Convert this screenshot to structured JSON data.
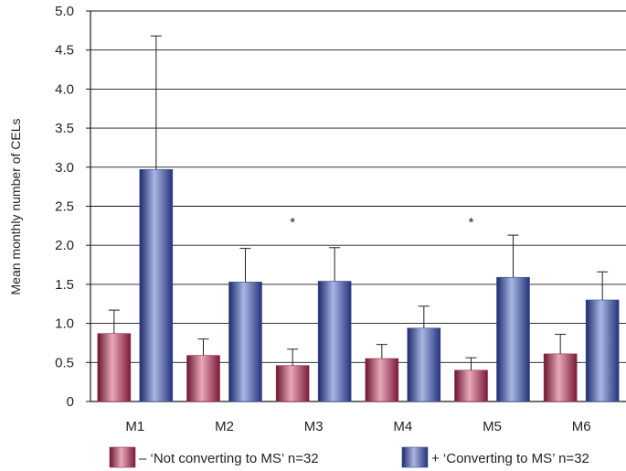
{
  "chart_data": {
    "type": "bar",
    "title": "",
    "xlabel": "",
    "ylabel": "Mean monthly number of CELs",
    "categories": [
      "M1",
      "M2",
      "M3",
      "M4",
      "M5",
      "M6"
    ],
    "ylim": [
      0,
      5.0
    ],
    "yticks": [
      "0",
      "0.5",
      "1.0",
      "1.5",
      "2.0",
      "2.5",
      "3.0",
      "3.5",
      "4.0",
      "4.5",
      "5.0"
    ],
    "grid": true,
    "legend_position": "bottom",
    "series": [
      {
        "name": "– ‘Not converting to MS’ n=32",
        "color": "#9b2a4a",
        "values": [
          0.87,
          0.59,
          0.46,
          0.55,
          0.4,
          0.61
        ],
        "error_upper": [
          1.17,
          0.8,
          0.67,
          0.73,
          0.56,
          0.86
        ]
      },
      {
        "name": "+ ‘Converting to MS’ n=32",
        "color": "#3e4f98",
        "values": [
          2.97,
          1.53,
          1.54,
          0.94,
          1.59,
          1.3
        ],
        "error_upper": [
          4.68,
          1.96,
          1.97,
          1.22,
          2.13,
          1.66
        ]
      }
    ],
    "annotations": [
      {
        "category": "M3",
        "text": "*"
      },
      {
        "category": "M5",
        "text": "*"
      }
    ]
  }
}
